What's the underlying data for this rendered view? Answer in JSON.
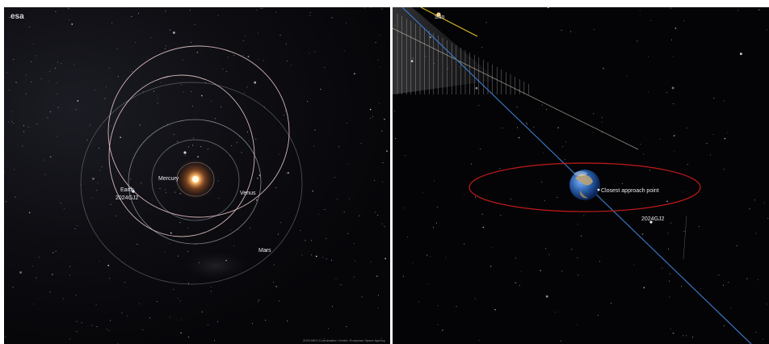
{
  "left_view": {
    "logo_text": "esa",
    "labels": {
      "mercury": "Mercury",
      "venus": "Venus",
      "earth": "Earth",
      "asteroid": "2024GJ2",
      "mars": "Mars"
    },
    "credit": "2024 NEO Coordination Centre. European Space Agency"
  },
  "right_view": {
    "labels": {
      "sun": "Sun",
      "closest_approach": "Closest approach point",
      "asteroid": "2024GJ2"
    }
  },
  "colors": {
    "space": "#05060a",
    "orbit_planet": "#9aa3a8",
    "orbit_asteroid": "#e8c8c8",
    "earth_orbit_ring": "#c21a1a",
    "trajectory": "#3b7fd1",
    "sun_line": "#e6c21c",
    "sun": "#ffd08a"
  }
}
